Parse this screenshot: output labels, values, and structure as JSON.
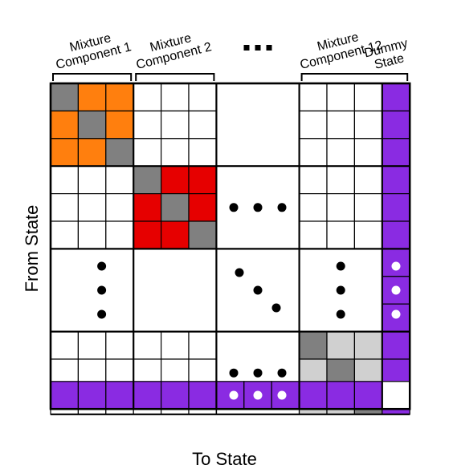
{
  "labels": {
    "component_1": "Mixture Component 1",
    "component_2": "Mixture Component 2",
    "component_12": "Mixture Component 12",
    "dummy_state": "Dummy State",
    "x_axis": "To State",
    "y_axis": "From State"
  },
  "colors": {
    "component_1_offdiag": "#ff7f0e",
    "component_2_offdiag": "#e60000",
    "component_12_offdiag": "#d0d0d0",
    "diagonal": "#808080",
    "dummy": "#8a2be2",
    "empty": "#ffffff",
    "grid": "#000000"
  },
  "icons": {
    "ellipsis_horizontal": "three-dots",
    "ellipsis_vertical": "three-dots-vertical",
    "ellipsis_diagonal": "three-dots-diagonal"
  }
}
